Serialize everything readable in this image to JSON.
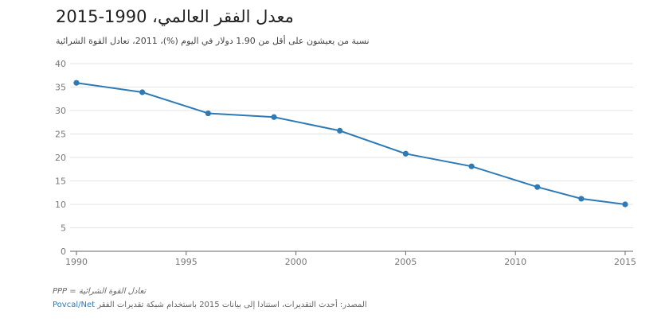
{
  "title": "معدل الفقر العالمي، 1990-2015",
  "subtitle": "نسبة من يعيشون على أقل من 1.90 دولار في اليوم (%)، 2011، تعادل القوة الشرائية",
  "note": "تعادل القوة الشرائية = PPP",
  "source": {
    "label": "المصدر: أحدث التقديرات، استنادا إلى بيانات 2015 باستخدام شبكة تقديرات الفقر",
    "link": "Povcal/Net"
  },
  "colors": {
    "line": "#2e7ab5",
    "grid": "#e3e3e3",
    "axis": "#666666"
  },
  "chart_data": {
    "type": "line",
    "title": "معدل الفقر العالمي، 1990-2015",
    "subtitle": "نسبة من يعيشون على أقل من 1.90 دولار في اليوم (%)، 2011، تعادل القوة الشرائية",
    "xlabel": "",
    "ylabel": "",
    "x": [
      1990,
      1993,
      1996,
      1999,
      2002,
      2005,
      2008,
      2011,
      2013,
      2015
    ],
    "y": [
      35.9,
      33.9,
      29.4,
      28.6,
      25.7,
      20.8,
      18.1,
      13.7,
      11.2,
      10.0
    ],
    "xlim": [
      1990,
      2015
    ],
    "ylim": [
      0,
      40
    ],
    "xticks": [
      1990,
      1995,
      2000,
      2005,
      2010,
      2015
    ],
    "yticks": [
      0,
      5,
      10,
      15,
      20,
      25,
      30,
      35,
      40
    ],
    "grid": true,
    "legend": "none"
  }
}
